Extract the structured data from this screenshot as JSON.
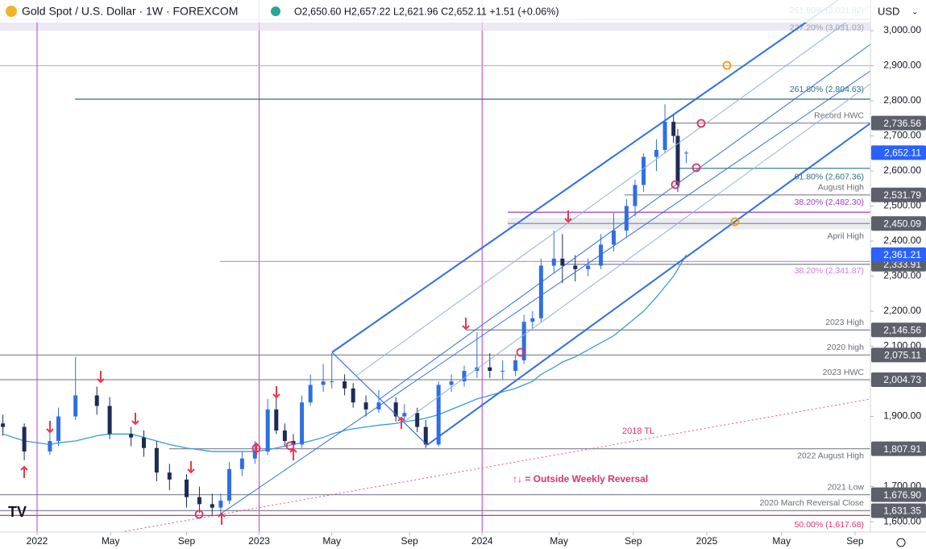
{
  "header": {
    "symbol": "Gold Spot / U.S. Dollar · 1W · FOREXCOM",
    "ohlc": "O2,650.60 H2,657.22 L2,621.96 C2,652.11 +1.51 (+0.06%)",
    "currency": "USD"
  },
  "chart_data": {
    "type": "candlestick",
    "x": [
      -8,
      -3,
      3,
      5,
      9,
      14,
      17,
      22,
      25,
      28,
      31,
      35,
      38,
      41,
      43,
      45,
      48,
      51,
      54,
      56,
      58,
      60,
      62,
      64,
      67,
      69,
      72,
      74,
      77,
      80,
      84,
      86,
      89,
      91,
      94,
      97,
      100,
      103,
      106,
      109,
      112,
      114,
      116,
      118,
      121,
      123,
      126,
      129,
      132,
      135,
      138,
      140,
      142,
      145,
      147,
      149,
      150,
      152
    ],
    "open": [
      1880,
      1870,
      1800,
      1830,
      1900,
      1960,
      1930,
      1850,
      1840,
      1810,
      1740,
      1720,
      1670,
      1650,
      1640,
      1660,
      1750,
      1780,
      1800,
      1920,
      1860,
      1830,
      1820,
      1940,
      1990,
      2000,
      2000,
      1980,
      1940,
      1920,
      1940,
      1900,
      1910,
      1870,
      1820,
      1990,
      2000,
      2030,
      2040,
      2030,
      2030,
      2060,
      2170,
      2180,
      2330,
      2350,
      2330,
      2320,
      2330,
      2390,
      2430,
      2500,
      2560,
      2640,
      2660,
      2740,
      2700,
      2650.6
    ],
    "high": [
      1905,
      1880,
      1855,
      1925,
      2070,
      1985,
      1955,
      1870,
      1860,
      1830,
      1765,
      1735,
      1700,
      1680,
      1680,
      1770,
      1800,
      1830,
      1950,
      1960,
      1880,
      1850,
      1960,
      2020,
      2050,
      2080,
      2020,
      1995,
      1960,
      1975,
      1955,
      1935,
      1925,
      1890,
      2000,
      2020,
      2045,
      2140,
      2080,
      2060,
      2075,
      2190,
      2200,
      2350,
      2430,
      2420,
      2360,
      2350,
      2420,
      2480,
      2520,
      2575,
      2650,
      2690,
      2790,
      2760,
      2720,
      2657.22
    ],
    "low": [
      1845,
      1775,
      1790,
      1815,
      1890,
      1905,
      1835,
      1815,
      1785,
      1715,
      1690,
      1640,
      1625,
      1615,
      1620,
      1650,
      1730,
      1765,
      1790,
      1850,
      1815,
      1805,
      1810,
      1930,
      1970,
      1980,
      1960,
      1925,
      1900,
      1910,
      1885,
      1880,
      1855,
      1810,
      1815,
      1970,
      1985,
      2010,
      2010,
      2005,
      2015,
      2050,
      2150,
      2170,
      2310,
      2280,
      2285,
      2300,
      2320,
      2370,
      2410,
      2470,
      2540,
      2600,
      2650,
      2680,
      2540,
      2621.96
    ],
    "close": [
      1870,
      1800,
      1830,
      1900,
      1960,
      1930,
      1850,
      1840,
      1810,
      1740,
      1720,
      1670,
      1650,
      1640,
      1660,
      1750,
      1780,
      1800,
      1920,
      1860,
      1830,
      1820,
      1940,
      1990,
      2000,
      2000,
      1980,
      1940,
      1920,
      1940,
      1900,
      1910,
      1870,
      1820,
      1990,
      2000,
      2030,
      2040,
      2030,
      2030,
      2060,
      2170,
      2180,
      2330,
      2350,
      2330,
      2320,
      2330,
      2390,
      2430,
      2500,
      2560,
      2640,
      2660,
      2740,
      2700,
      2560,
      2652.11
    ],
    "color_up": "#2f6fe0",
    "color_down": "#1c2c55",
    "moving_average": {
      "color": "#3a9ad9",
      "values": [
        1850,
        1830,
        1820,
        1825,
        1830,
        1845,
        1850,
        1850,
        1840,
        1830,
        1820,
        1810,
        1805,
        1800,
        1800,
        1800,
        1800,
        1800,
        1805,
        1810,
        1815,
        1820,
        1825,
        1830,
        1840,
        1850,
        1860,
        1865,
        1870,
        1875,
        1880,
        1885,
        1890,
        1895,
        1905,
        1920,
        1935,
        1950,
        1960,
        1970,
        1980,
        1990,
        2000,
        2020,
        2040,
        2055,
        2070,
        2090,
        2110,
        2130,
        2160,
        2180,
        2200,
        2240,
        2270,
        2300,
        2320,
        2361.21
      ],
      "last_label": "2,361.21"
    },
    "last_price": {
      "value": 2652.11,
      "label": "2,652.11",
      "color": "#2962ff"
    },
    "xlim": [
      -8.68,
      195.1
    ],
    "xticks": [
      {
        "value": 0,
        "label": "2022"
      },
      {
        "value": 17.2,
        "label": "May"
      },
      {
        "value": 35,
        "label": "Sep"
      },
      {
        "value": 52,
        "label": "2023"
      },
      {
        "value": 69,
        "label": "May"
      },
      {
        "value": 87.2,
        "label": "Sep"
      },
      {
        "value": 104.2,
        "label": "2024"
      },
      {
        "value": 122.2,
        "label": "May"
      },
      {
        "value": 139.6,
        "label": "Sep"
      },
      {
        "value": 156.8,
        "label": "2025"
      },
      {
        "value": 174.3,
        "label": "May"
      },
      {
        "value": 191.5,
        "label": "Sep"
      }
    ],
    "year_lines": [
      0,
      52,
      104.2
    ],
    "ylim": [
      1570.3,
      3087.4
    ],
    "yticks": [
      {
        "value": 1600,
        "label": "1,600.00"
      },
      {
        "value": 1700,
        "label": "1,700.00"
      },
      {
        "value": 1800,
        "label": "1,800.00"
      },
      {
        "value": 1900,
        "label": "1,900.00"
      },
      {
        "value": 2000,
        "label": "2,000.00"
      },
      {
        "value": 2100,
        "label": "2,100.00"
      },
      {
        "value": 2200,
        "label": "2,200.00"
      },
      {
        "value": 2300,
        "label": "2,300.00"
      },
      {
        "value": 2400,
        "label": "2,400.00"
      },
      {
        "value": 2500,
        "label": "2,500.00"
      },
      {
        "value": 2600,
        "label": "2,600.00"
      },
      {
        "value": 2700,
        "label": "2,700.00"
      },
      {
        "value": 2800,
        "label": "2,800.00"
      },
      {
        "value": 2900,
        "label": "2,900.00"
      },
      {
        "value": 3000,
        "label": "3,000.00"
      }
    ],
    "levels": [
      {
        "value": 3031.82,
        "note": "261.80% (3,031.82)",
        "color": "#2a6f7f"
      },
      {
        "value": 3031.03,
        "note": "227.20% (3,031.03)",
        "color": "#9aa0ad"
      },
      {
        "value": 2900,
        "color": "#b8bcc6"
      },
      {
        "value": 2804.63,
        "note": "261.80% (2,804.63)",
        "color": "#2a6f7f"
      },
      {
        "value": 2736.56,
        "label": "2,736.56",
        "note": "Record HWC",
        "color": "#8a8e99"
      },
      {
        "value": 2607.36,
        "note": "61.80% (2,607.36)",
        "color": "#2a6f7f"
      },
      {
        "value": 2531.79,
        "label": "2,531.79",
        "note": "August High",
        "color": "#8a8e99"
      },
      {
        "value": 2482.3,
        "note": "38.20% (2,482.30)",
        "color": "#a23cc4"
      },
      {
        "value": 2450.09,
        "label": "2,450.09",
        "note": "April High",
        "color": "#8a8e99"
      },
      {
        "value": 2341.87,
        "note": "38.20% (2,341.87)",
        "color": "#cf7de0"
      },
      {
        "value": 2333.91,
        "label": "2,333.91",
        "color": "#8a8e99"
      },
      {
        "value": 2146.56,
        "label": "2,146.56",
        "note": "2023 High",
        "color": "#8a8e99"
      },
      {
        "value": 2075.11,
        "label": "2,075.11",
        "note": "2020 high",
        "color": "#8a8e99"
      },
      {
        "value": 2004.73,
        "label": "2,004.73",
        "note": "2023 HWC",
        "color": "#8a8e99"
      },
      {
        "value": 1807.91,
        "label": "1,807.91",
        "note": "2022 August High",
        "color": "#8a8e99"
      },
      {
        "value": 1676.9,
        "label": "1,676.90",
        "note": "2021 Low",
        "color": "#8a8e99"
      },
      {
        "value": 1631.35,
        "label": "1,631.35",
        "note": "2020 March Reversal Close",
        "color": "#8a8e99"
      },
      {
        "value": 1617.68,
        "note": "50.00% (1,617.68)",
        "color": "#e0306a"
      }
    ],
    "annotations": [
      "2018 TL",
      "↑↓ = Outside Weekly Reversal"
    ]
  }
}
